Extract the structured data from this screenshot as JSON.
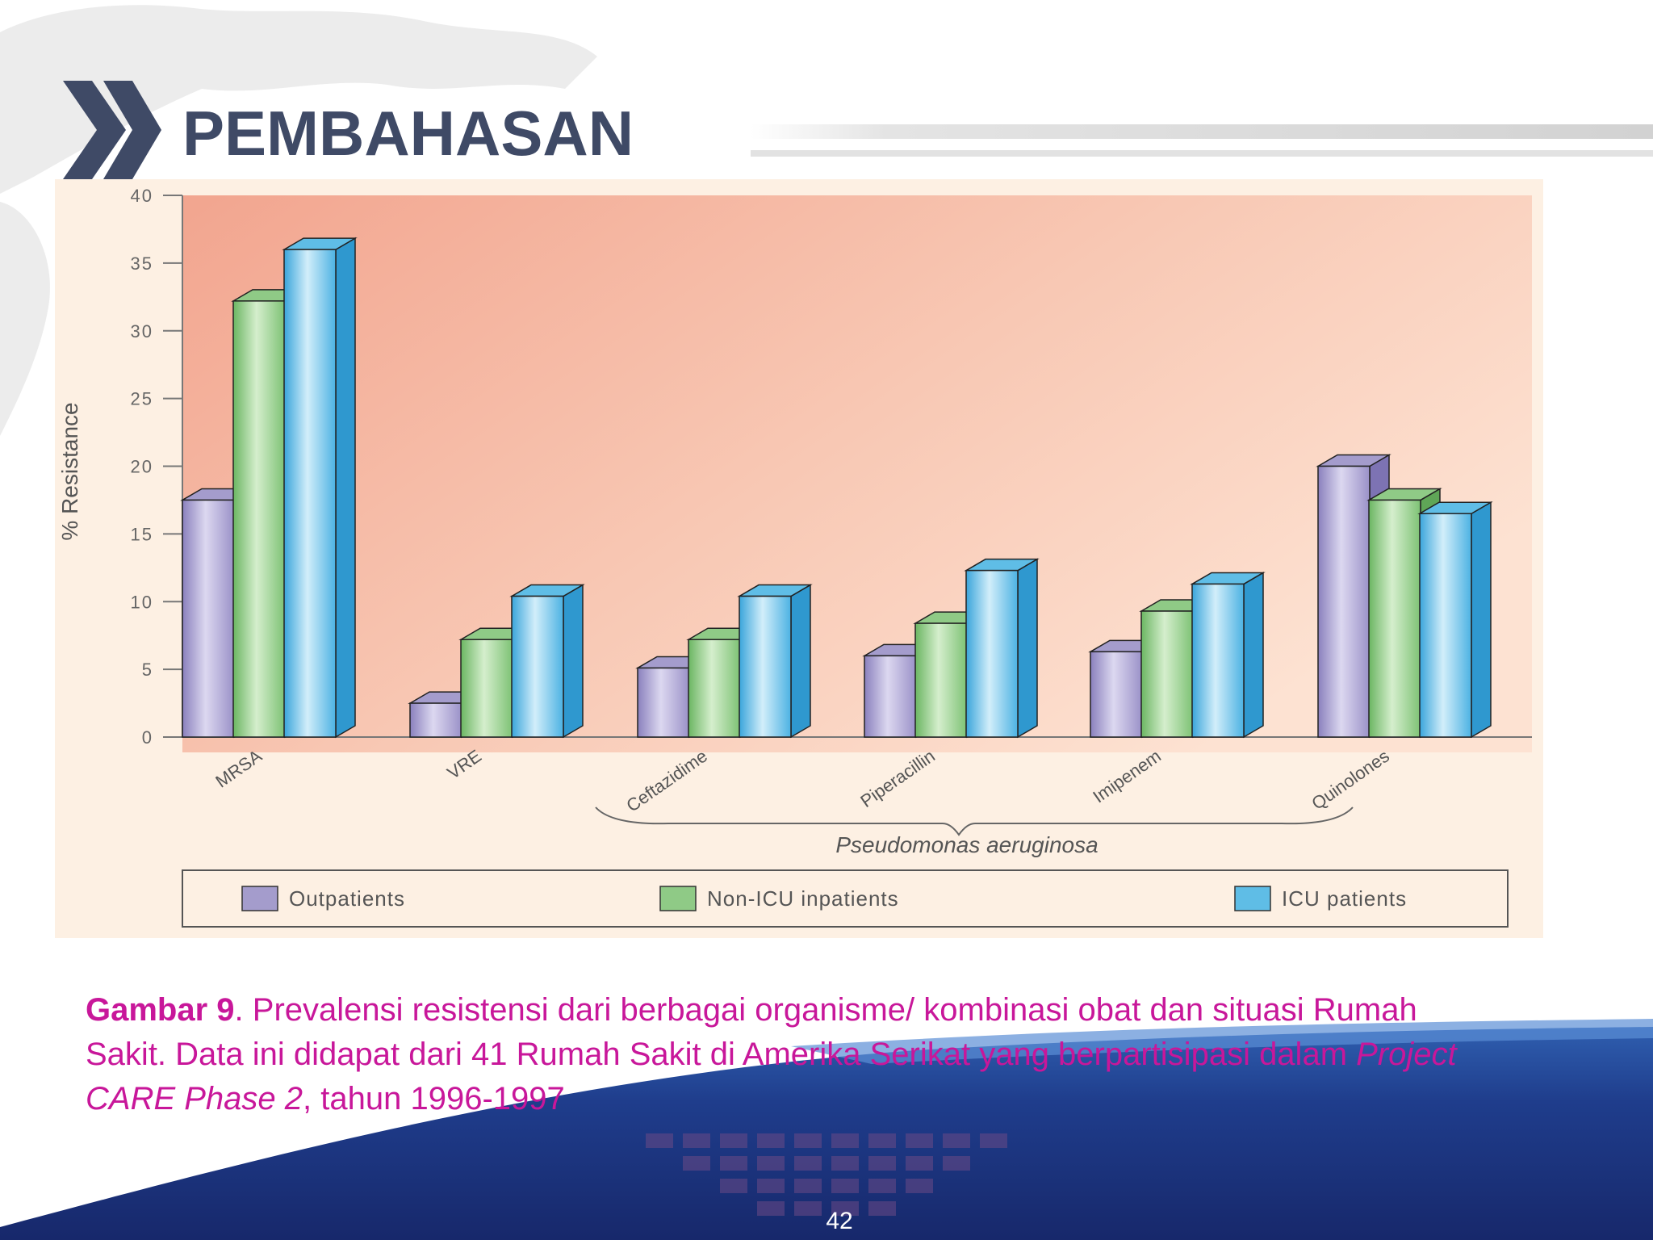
{
  "slide": {
    "title": "PEMBAHASAN",
    "page_number": "42",
    "caption": {
      "label": "Gambar 9",
      "text_1": ". Prevalensi resistensi dari berbagai organisme/ kombinasi obat dan situasi Rumah Sakit. Data ini didapat dari 41 Rumah Sakit di Amerika Serikat yang berpartisipasi dalam ",
      "italic": "Project CARE Phase 2",
      "text_2": ", tahun 1996-1997"
    }
  },
  "colors": {
    "title": "#3f4a66",
    "caption": "#c8179a",
    "outpatients": "#a49ccc",
    "non_icu": "#8fca86",
    "icu": "#5fbde6",
    "banner": "#1f3c8f"
  },
  "icons": [
    "double-chevron-right-icon"
  ],
  "chart_data": {
    "type": "bar",
    "categories": [
      "MRSA",
      "VRE",
      "Ceftazidime",
      "Piperacillin",
      "Imipenem",
      "Quinolones"
    ],
    "group_label": "Pseudomonas aeruginosa",
    "series": [
      {
        "name": "Outpatients",
        "values": [
          17.5,
          2.5,
          5.1,
          6.0,
          6.3,
          20.0
        ]
      },
      {
        "name": "Non-ICU inpatients",
        "values": [
          32.2,
          7.2,
          7.2,
          8.4,
          9.3,
          17.5
        ]
      },
      {
        "name": "ICU patients",
        "values": [
          36.0,
          10.4,
          10.4,
          12.3,
          11.3,
          16.5
        ]
      }
    ],
    "ylabel": "% Resistance",
    "yticks": [
      "0",
      "5",
      "10",
      "15",
      "20",
      "25",
      "30",
      "35",
      "40"
    ],
    "ylim": [
      0,
      40
    ],
    "legend_position": "bottom",
    "grid": false,
    "style": "3d"
  }
}
